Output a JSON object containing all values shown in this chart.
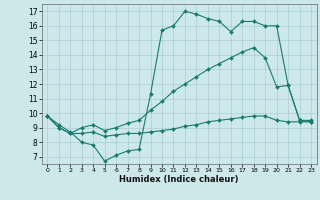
{
  "xlabel": "Humidex (Indice chaleur)",
  "bg_color": "#cce8eb",
  "line_color": "#1a7a6e",
  "grid_color": "#aacdd2",
  "xlim": [
    -0.5,
    23.5
  ],
  "ylim": [
    6.5,
    17.5
  ],
  "xticks": [
    0,
    1,
    2,
    3,
    4,
    5,
    6,
    7,
    8,
    9,
    10,
    11,
    12,
    13,
    14,
    15,
    16,
    17,
    18,
    19,
    20,
    21,
    22,
    23
  ],
  "yticks": [
    7,
    8,
    9,
    10,
    11,
    12,
    13,
    14,
    15,
    16,
    17
  ],
  "line1_x": [
    0,
    1,
    2,
    3,
    4,
    5,
    6,
    7,
    8,
    9,
    10,
    11,
    12,
    13,
    14,
    15,
    16,
    17,
    18,
    19,
    20,
    21,
    22,
    23
  ],
  "line1_y": [
    9.8,
    9.2,
    8.7,
    8.0,
    7.8,
    6.7,
    7.1,
    7.4,
    7.5,
    11.3,
    15.7,
    16.0,
    17.0,
    16.8,
    16.5,
    16.3,
    15.6,
    16.3,
    16.3,
    16.0,
    16.0,
    11.9,
    9.5,
    9.5
  ],
  "line2_x": [
    0,
    1,
    2,
    3,
    4,
    5,
    6,
    7,
    8,
    9,
    10,
    11,
    12,
    13,
    14,
    15,
    16,
    17,
    18,
    19,
    20,
    21,
    22,
    23
  ],
  "line2_y": [
    9.8,
    9.0,
    8.6,
    9.0,
    9.2,
    8.8,
    9.0,
    9.3,
    9.5,
    10.2,
    10.8,
    11.5,
    12.0,
    12.5,
    13.0,
    13.4,
    13.8,
    14.2,
    14.5,
    13.8,
    11.8,
    11.9,
    9.5,
    9.4
  ],
  "line3_x": [
    0,
    1,
    2,
    3,
    4,
    5,
    6,
    7,
    8,
    9,
    10,
    11,
    12,
    13,
    14,
    15,
    16,
    17,
    18,
    19,
    20,
    21,
    22,
    23
  ],
  "line3_y": [
    9.8,
    9.0,
    8.6,
    8.6,
    8.7,
    8.4,
    8.5,
    8.6,
    8.6,
    8.7,
    8.8,
    8.9,
    9.1,
    9.2,
    9.4,
    9.5,
    9.6,
    9.7,
    9.8,
    9.8,
    9.5,
    9.4,
    9.4,
    9.4
  ]
}
